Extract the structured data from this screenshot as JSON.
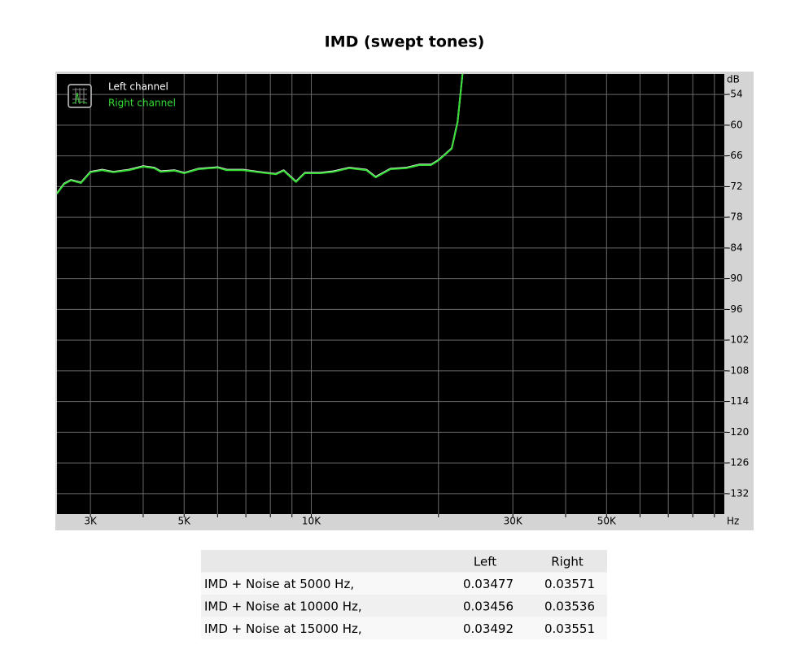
{
  "chart_data": {
    "type": "line",
    "title": "IMD (swept tones)",
    "xlabel": "Hz",
    "ylabel": "dB",
    "log_x": true,
    "grid": true,
    "legend": "top-left",
    "xlim": [
      2500,
      95000
    ],
    "ylim": [
      -136,
      -50
    ],
    "xticks": [
      {
        "value": 3000,
        "label": "3K"
      },
      {
        "value": 5000,
        "label": "5K"
      },
      {
        "value": 10000,
        "label": "10K"
      },
      {
        "value": 30000,
        "label": "30K"
      },
      {
        "value": 50000,
        "label": "50K"
      }
    ],
    "x_gridlines": [
      3000,
      4000,
      5000,
      6000,
      7000,
      8000,
      9000,
      10000,
      20000,
      30000,
      40000,
      50000,
      60000,
      70000,
      80000,
      90000
    ],
    "yticks": [
      -54,
      -60,
      -66,
      -72,
      -78,
      -84,
      -90,
      -96,
      -102,
      -108,
      -114,
      -120,
      -126,
      -132
    ],
    "x": [
      2500,
      2600,
      2700,
      2850,
      3000,
      3200,
      3400,
      3700,
      4000,
      4250,
      4400,
      4750,
      5000,
      5400,
      6000,
      6300,
      6900,
      7500,
      8250,
      8600,
      9200,
      9650,
      10500,
      11300,
      12300,
      13500,
      14200,
      15400,
      16800,
      18000,
      19200,
      20000,
      21500,
      22200,
      22800
    ],
    "series": [
      {
        "name": "Left channel",
        "color": "#ffffff",
        "values": [
          -73.3,
          -71.4,
          -70.7,
          -71.2,
          -69.1,
          -68.7,
          -69.1,
          -68.7,
          -68.0,
          -68.3,
          -69.0,
          -68.8,
          -69.3,
          -68.5,
          -68.2,
          -68.7,
          -68.7,
          -69.1,
          -69.5,
          -68.8,
          -71.0,
          -69.3,
          -69.3,
          -69.0,
          -68.3,
          -68.7,
          -70.1,
          -68.5,
          -68.3,
          -67.7,
          -67.7,
          -66.8,
          -64.5,
          -59.3,
          -50
        ]
      },
      {
        "name": "Right channel",
        "color": "#33dd33",
        "values": [
          -73.4,
          -71.5,
          -70.8,
          -71.3,
          -69.2,
          -68.8,
          -69.2,
          -68.8,
          -68.1,
          -68.4,
          -69.1,
          -68.9,
          -69.4,
          -68.6,
          -68.3,
          -68.8,
          -68.8,
          -69.2,
          -69.6,
          -68.9,
          -71.1,
          -69.4,
          -69.4,
          -69.1,
          -68.4,
          -68.8,
          -70.2,
          -68.6,
          -68.4,
          -67.8,
          -67.8,
          -66.9,
          -64.6,
          -59.4,
          -50
        ]
      }
    ]
  },
  "table": {
    "columns": [
      "Left",
      "Right"
    ],
    "rows": [
      {
        "label": "IMD + Noise at 5000 Hz,",
        "values": [
          0.03477,
          0.03571
        ]
      },
      {
        "label": "IMD + Noise at 10000 Hz,",
        "values": [
          0.03456,
          0.03536
        ]
      },
      {
        "label": "IMD + Noise at 15000 Hz,",
        "values": [
          0.03492,
          0.03551
        ]
      }
    ]
  }
}
